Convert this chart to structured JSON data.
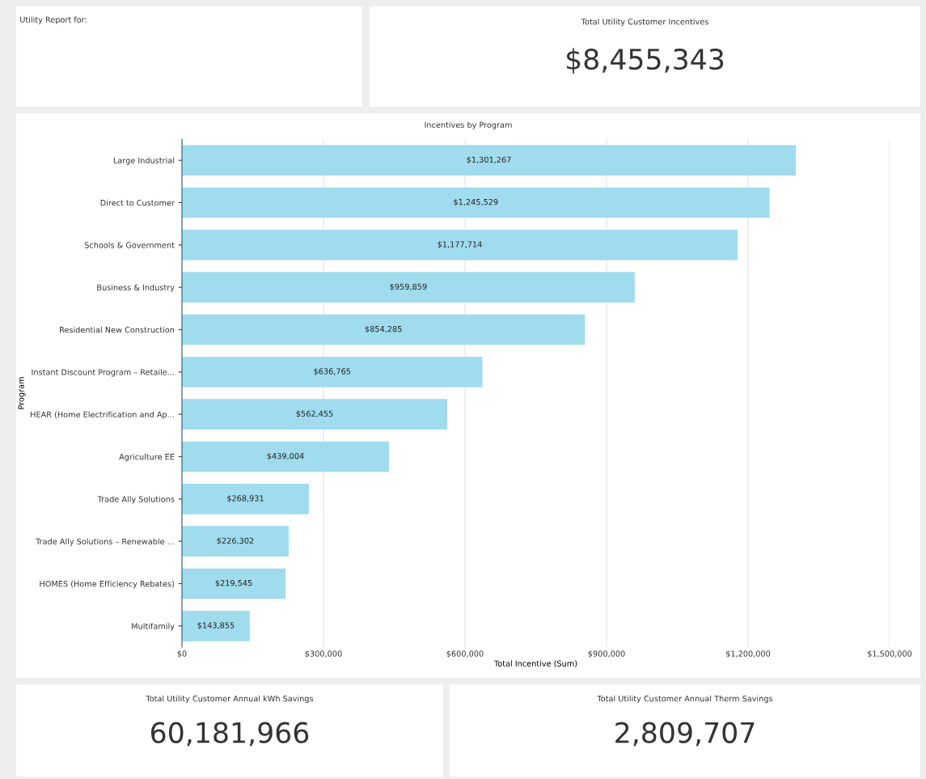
{
  "chart_data": [
    {
      "type": "other",
      "title": "Utility Report for:"
    },
    {
      "type": "other",
      "title": "Total Utility Customer Incentives",
      "annotations": [
        "$8,455,343"
      ]
    },
    {
      "type": "bar",
      "orientation": "horizontal",
      "title": "Incentives by Program",
      "xlabel": "Total Incentive (Sum)",
      "ylabel": "Program",
      "categories": [
        "Large Industrial",
        "Direct to Customer",
        "Schools & Government",
        "Business & Industry",
        "Residential New Construction",
        "Instant Discount Program – Retaile...",
        "HEAR (Home Electrification and Ap...",
        "Agriculture EE",
        "Trade Ally Solutions",
        "Trade Ally Solutions – Renewable ...",
        "HOMES (Home Efficiency Rebates)",
        "Multifamily"
      ],
      "values": [
        1301267,
        1245529,
        1177714,
        959859,
        854285,
        636765,
        562455,
        439004,
        268931,
        226302,
        219545,
        143855
      ],
      "value_labels": [
        "$1,301,267",
        "$1,245,529",
        "$1,177,714",
        "$959,859",
        "$854,285",
        "$636,765",
        "$562,455",
        "$439,004",
        "$268,931",
        "$226,302",
        "$219,545",
        "$143,855"
      ],
      "color": "#a0dcee",
      "xlim": [
        0,
        1500000
      ],
      "xticks": [
        {
          "value": 0,
          "label": "$0"
        },
        {
          "value": 300000,
          "label": "$300,000"
        },
        {
          "value": 600000,
          "label": "$600,000"
        },
        {
          "value": 900000,
          "label": "$900,000"
        },
        {
          "value": 1200000,
          "label": "$1,200,000"
        },
        {
          "value": 1500000,
          "label": "$1,500,000"
        }
      ],
      "grid": "x"
    },
    {
      "type": "other",
      "title": "Total Utility Customer Annual kWh Savings",
      "annotations": [
        "60,181,966"
      ]
    },
    {
      "type": "other",
      "title": "Total Utility Customer Annual Therm Savings",
      "annotations": [
        "2,809,707"
      ]
    }
  ]
}
